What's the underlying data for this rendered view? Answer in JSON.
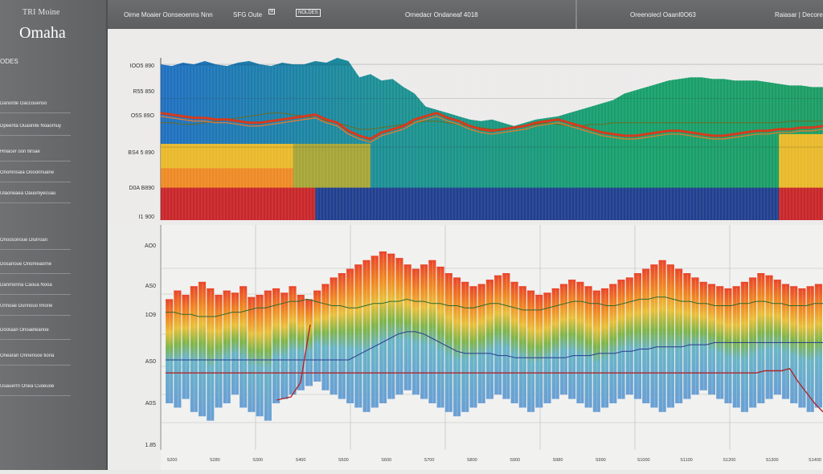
{
  "sidebar": {
    "logo_small": "TRI Moine",
    "logo_big": "Omaha",
    "section_title": "ODES",
    "items": [
      "Danorde Oaccouenso",
      "Dpeenta Ouaonite Noaomuy",
      "Hnlacer oon llirsae",
      "Onomnsaia Oooonnuane",
      "Ulaoneaea Oauurliyecuau",
      "Onoosonoue Dlurroan",
      "Dosanoue Onomeaorne",
      "Danmorina Caoua Nooa",
      "Unnoae Dunnouo Imone",
      "Dootaan Onoaeteanoe",
      "Onearan Onnensoe tiona",
      "Uuauerrn Onea Cuoeuoe"
    ]
  },
  "topbar": {
    "title": "Oirne Moaier Oonseoenns Nnn",
    "code": "SFG Oute",
    "badge": "NOLDES",
    "center": "Ornedacr Ondaneaf 4018",
    "right1": "Oreenoiecl Oaanl0O63",
    "right2": "Raiasar | Decore"
  },
  "colors": {
    "teal": "#1c8f95",
    "green": "#18a06c",
    "blue": "#1e6fc0",
    "navy": "#213f8f",
    "yellow": "#e9b92a",
    "orange": "#ee8a25",
    "red": "#c8262a",
    "lime": "#8bb02c"
  },
  "chart_data": [
    {
      "type": "area",
      "title": "",
      "y_ticks": [
        "IOO5 890",
        "R55 850",
        "O5S 89O",
        "BS4 5 890",
        "D0A B890",
        "I1 900"
      ],
      "x": [
        0,
        1,
        2,
        3,
        4,
        5,
        6,
        7,
        8,
        9,
        10,
        11,
        12,
        13,
        14,
        15,
        16,
        17,
        18,
        19,
        20,
        21,
        22,
        23,
        24,
        25,
        26,
        27,
        28,
        29,
        30,
        31,
        32,
        33,
        34,
        35,
        36,
        37,
        38,
        39,
        40,
        41,
        42,
        43,
        44,
        45,
        46,
        47,
        48,
        49,
        50,
        51,
        52,
        53,
        54,
        55,
        56,
        57,
        58,
        59,
        60
      ],
      "ylim": [
        0,
        100
      ],
      "series": [
        {
          "name": "teal-green",
          "color": "teal",
          "values": [
            96,
            95,
            97,
            96,
            98,
            96,
            95,
            97,
            98,
            96,
            95,
            97,
            96,
            96,
            98,
            97,
            100,
            98,
            88,
            90,
            86,
            87,
            82,
            78,
            70,
            68,
            66,
            64,
            62,
            61,
            62,
            60,
            58,
            60,
            62,
            63,
            64,
            66,
            68,
            70,
            72,
            74,
            78,
            80,
            82,
            84,
            86,
            87,
            88,
            88,
            87,
            87,
            86,
            86,
            86,
            85,
            84,
            83,
            83,
            82,
            82
          ]
        },
        {
          "name": "red-line",
          "color": "red",
          "values": [
            66,
            65,
            64,
            63,
            63,
            62,
            62,
            61,
            60,
            60,
            61,
            62,
            63,
            64,
            65,
            62,
            60,
            55,
            52,
            50,
            54,
            56,
            58,
            62,
            64,
            66,
            63,
            61,
            58,
            56,
            55,
            56,
            57,
            58,
            60,
            61,
            62,
            60,
            58,
            56,
            54,
            53,
            52,
            52,
            53,
            54,
            55,
            55,
            54,
            53,
            52,
            52,
            53,
            54,
            55,
            55,
            56,
            56,
            57,
            57,
            58
          ]
        },
        {
          "name": "olive-line",
          "color": "lime",
          "values": [
            60,
            60,
            59,
            59,
            60,
            61,
            62,
            63,
            64,
            65,
            66,
            66,
            65,
            64,
            63,
            61,
            60,
            58,
            56,
            56,
            57,
            58,
            59,
            60,
            61,
            61,
            60,
            59,
            58,
            57,
            56,
            56,
            57,
            58,
            59,
            60,
            59,
            58,
            58,
            59,
            59,
            60,
            60,
            60,
            60,
            60,
            60,
            60,
            60,
            60,
            60,
            60,
            60,
            60,
            60,
            60,
            60,
            61,
            61,
            61,
            61
          ]
        },
        {
          "name": "yellow-band",
          "color": "yellow",
          "values": [
            47,
            47,
            47,
            47,
            47,
            47,
            47,
            47,
            47,
            47,
            47,
            47,
            47,
            47,
            47,
            47,
            47,
            47,
            47,
            47,
            0,
            0,
            0,
            0,
            0,
            0,
            0,
            0,
            0,
            0,
            0,
            0,
            0,
            0,
            0,
            0,
            0,
            0,
            0,
            0,
            0,
            0,
            0,
            0,
            0,
            0,
            0,
            0,
            0,
            0,
            0,
            0,
            0,
            0,
            0,
            0,
            53,
            53,
            53,
            53,
            53
          ]
        },
        {
          "name": "red-navy-base",
          "color": "navy",
          "values": [
            19,
            19,
            19,
            19,
            19,
            19,
            19,
            19,
            19,
            19,
            19,
            19,
            19,
            20,
            20,
            20,
            20,
            20,
            20,
            20,
            20,
            20,
            20,
            20,
            20,
            20,
            20,
            20,
            20,
            20,
            20,
            20,
            20,
            20,
            20,
            20,
            20,
            20,
            20,
            20,
            20,
            20,
            20,
            20,
            20,
            20,
            20,
            20,
            20,
            20,
            20,
            20,
            20,
            20,
            20,
            20,
            20,
            20,
            20,
            20,
            20
          ]
        }
      ]
    },
    {
      "type": "bar",
      "title": "",
      "y_ticks": [
        "AO0",
        "AS0",
        "1O9",
        "AS0",
        "A0S",
        "1.85"
      ],
      "x": [
        0,
        1,
        2,
        3,
        4,
        5,
        6,
        7,
        8,
        9,
        10,
        11,
        12,
        13,
        14,
        15,
        16,
        17,
        18,
        19,
        20,
        21,
        22,
        23,
        24,
        25,
        26,
        27,
        28,
        29,
        30,
        31,
        32,
        33,
        34,
        35,
        36,
        37,
        38,
        39,
        40,
        41,
        42,
        43,
        44,
        45,
        46,
        47,
        48,
        49,
        50,
        51,
        52,
        53,
        54,
        55,
        56,
        57,
        58,
        59,
        60,
        61,
        62,
        63,
        64,
        65,
        66,
        67,
        68,
        69,
        70,
        71,
        72,
        73,
        74,
        75,
        76,
        77,
        78,
        79
      ],
      "ylim": [
        0,
        100
      ],
      "series": [
        {
          "name": "spectrum-top",
          "color": "orange",
          "values": [
            68,
            72,
            70,
            74,
            76,
            73,
            70,
            72,
            71,
            74,
            69,
            70,
            72,
            73,
            71,
            74,
            70,
            68,
            72,
            75,
            78,
            80,
            82,
            84,
            86,
            88,
            90,
            89,
            87,
            84,
            82,
            84,
            86,
            83,
            80,
            78,
            76,
            74,
            75,
            77,
            79,
            80,
            76,
            74,
            72,
            70,
            71,
            73,
            75,
            77,
            76,
            74,
            72,
            73,
            75,
            77,
            78,
            80,
            82,
            84,
            86,
            84,
            82,
            80,
            78,
            76,
            75,
            74,
            73,
            74,
            76,
            78,
            80,
            79,
            77,
            75,
            74,
            73,
            74,
            75
          ]
        },
        {
          "name": "spectrum-bottom",
          "color": "blue",
          "values": [
            20,
            18,
            22,
            16,
            14,
            12,
            18,
            20,
            24,
            18,
            16,
            14,
            12,
            20,
            22,
            24,
            26,
            28,
            30,
            26,
            24,
            22,
            20,
            18,
            16,
            18,
            20,
            22,
            24,
            26,
            24,
            22,
            20,
            18,
            16,
            14,
            16,
            18,
            20,
            22,
            24,
            22,
            20,
            18,
            16,
            18,
            20,
            22,
            24,
            22,
            20,
            18,
            16,
            18,
            20,
            22,
            24,
            22,
            20,
            18,
            16,
            18,
            20,
            22,
            24,
            26,
            24,
            22,
            20,
            18,
            16,
            18,
            20,
            22,
            24,
            22,
            20,
            18,
            16,
            18
          ]
        },
        {
          "name": "green-line",
          "color": "green",
          "values": [
            62,
            62,
            61,
            61,
            60,
            60,
            60,
            61,
            62,
            62,
            63,
            64,
            64,
            65,
            66,
            67,
            67,
            68,
            67,
            66,
            65,
            65,
            64,
            64,
            65,
            66,
            66,
            67,
            67,
            68,
            67,
            67,
            66,
            66,
            65,
            65,
            64,
            64,
            65,
            66,
            66,
            65,
            64,
            63,
            63,
            63,
            64,
            65,
            66,
            67,
            67,
            66,
            66,
            65,
            65,
            66,
            67,
            68,
            68,
            69,
            69,
            68,
            67,
            67,
            66,
            66,
            65,
            65,
            65,
            66,
            66,
            67,
            67,
            66,
            66,
            65,
            65,
            65,
            66,
            66
          ]
        },
        {
          "name": "navy-line",
          "color": "navy",
          "values": [
            40,
            40,
            40,
            40,
            40,
            40,
            40,
            40,
            40,
            40,
            40,
            40,
            40,
            40,
            40,
            40,
            40,
            40,
            40,
            40,
            40,
            40,
            40,
            42,
            44,
            46,
            48,
            50,
            52,
            53,
            53,
            52,
            50,
            48,
            46,
            44,
            43,
            43,
            43,
            43,
            42,
            42,
            41,
            41,
            41,
            41,
            41,
            41,
            41,
            42,
            42,
            42,
            43,
            43,
            43,
            44,
            44,
            45,
            45,
            46,
            46,
            46,
            46,
            47,
            47,
            47,
            48,
            48,
            48,
            48,
            48,
            48,
            48,
            48,
            48,
            48,
            48,
            48,
            48,
            48
          ]
        },
        {
          "name": "red-line",
          "color": "red",
          "values": [
            34,
            34,
            34,
            34,
            34,
            34,
            34,
            34,
            34,
            34,
            34,
            34,
            34,
            34,
            34,
            34,
            34,
            34,
            34,
            34,
            34,
            34,
            34,
            34,
            34,
            34,
            34,
            34,
            34,
            34,
            34,
            34,
            34,
            34,
            34,
            34,
            34,
            34,
            34,
            34,
            34,
            34,
            34,
            34,
            34,
            34,
            34,
            34,
            34,
            34,
            34,
            34,
            34,
            34,
            34,
            34,
            34,
            34,
            34,
            34,
            34,
            34,
            34,
            34,
            34,
            34,
            34,
            34,
            34,
            34,
            34,
            34,
            35,
            35,
            35,
            36,
            30,
            25,
            20,
            16
          ]
        }
      ],
      "x_tick_labels": [
        "S200",
        "S280",
        "S300",
        "S400",
        "S500",
        "S600",
        "S700",
        "S800",
        "S900",
        "S980",
        "S990",
        "S1000",
        "S1100",
        "S1200",
        "S1300",
        "S1400"
      ]
    }
  ]
}
